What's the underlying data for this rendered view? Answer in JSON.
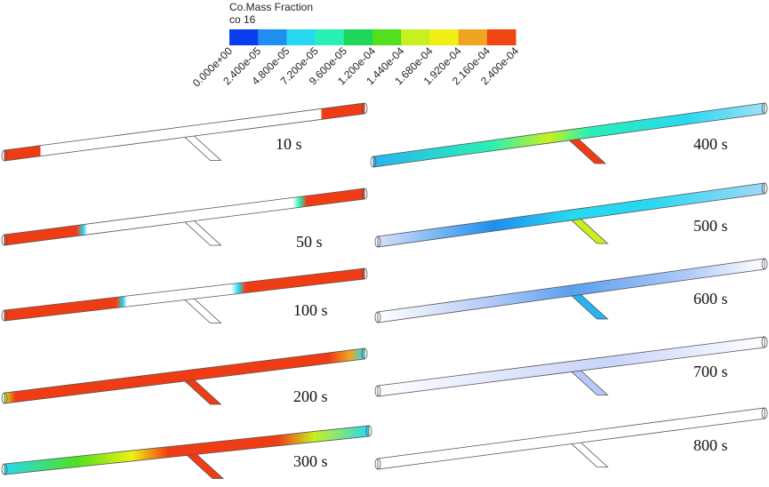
{
  "legend": {
    "title": "Co.Mass Fraction",
    "subtitle": "co 16",
    "colors": [
      "#0a3cf0",
      "#1e8ff0",
      "#28d8f0",
      "#28f0b4",
      "#1ed75a",
      "#50e01e",
      "#c8f01e",
      "#f0f014",
      "#f0a51e",
      "#f04614"
    ],
    "labels": [
      "0.000e+00",
      "2.400e-05",
      "4.800e-05",
      "7.200e-05",
      "9.600e-05",
      "1.200e-04",
      "1.440e-04",
      "1.680e-04",
      "1.920e-04",
      "2.160e-04",
      "2.400e-04"
    ]
  },
  "panels": [
    {
      "label": "10 s"
    },
    {
      "label": "50 s"
    },
    {
      "label": "100 s"
    },
    {
      "label": "200 s"
    },
    {
      "label": "300 s"
    },
    {
      "label": "400 s"
    },
    {
      "label": "500 s"
    },
    {
      "label": "600 s"
    },
    {
      "label": "700 s"
    },
    {
      "label": "800 s"
    }
  ]
}
